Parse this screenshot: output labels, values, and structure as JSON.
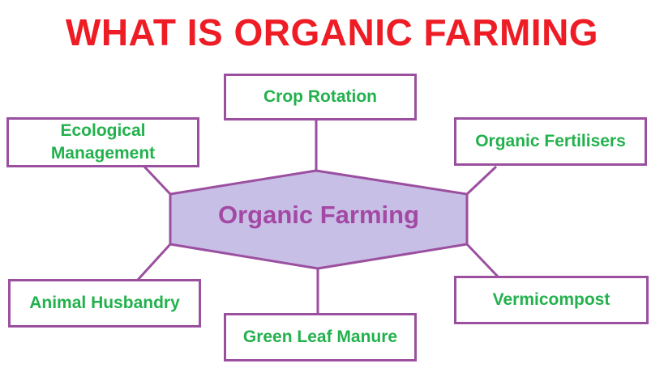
{
  "title": "WHAT IS ORGANIC FARMING",
  "center": "Organic Farming",
  "nodes": {
    "crop_rotation": "Crop Rotation",
    "ecological_management": "Ecological\nManagement",
    "organic_fertilisers": "Organic Fertilisers",
    "animal_husbandry": "Animal Husbandry",
    "green_leaf_manure": "Green Leaf Manure",
    "vermicompost": "Vermicompost"
  },
  "colors": {
    "title": "#ee1c24",
    "node_text": "#22b14c",
    "border": "#9b4f9f",
    "center_fill": "#c8bfe7",
    "center_text": "#a349a4"
  }
}
